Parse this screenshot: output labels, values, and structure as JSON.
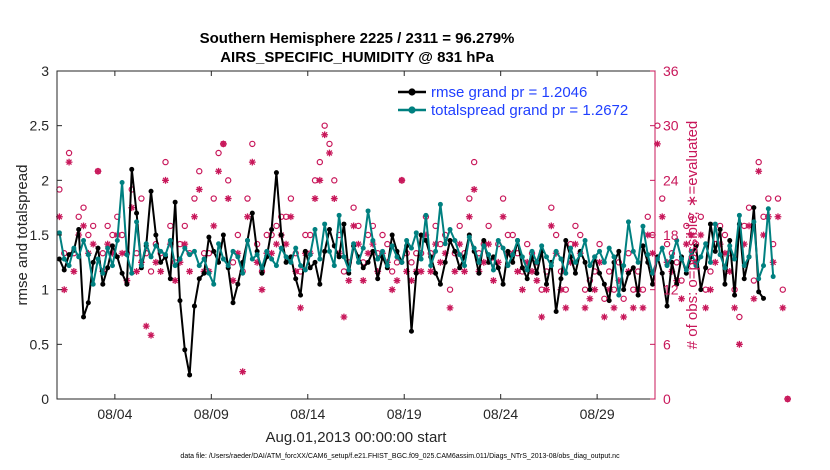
{
  "chart_data": {
    "type": "line",
    "title": "Southern Hemisphere 2225 / 2311 = 96.279%",
    "subtitle": "AIRS_SPECIFIC_HUMIDITY @ 831 hPa",
    "xlabel": "Aug.01,2013 00:00:00 start",
    "ylabel": "rmse and totalspread",
    "ylabel_right": "# of obs: o=possible; ∗=evaluated",
    "footer": "data file: /Users/raeder/DAI/ATM_forcXX/CAM6_setup/f.e21.FHIST_BGC.f09_025.CAM6assim.011/Diags_NTrS_2013-08/obs_diag_output.nc",
    "ylim": [
      0,
      3
    ],
    "ylim_right": [
      0,
      36
    ],
    "xlim_days": [
      1.0,
      32.0
    ],
    "x_tick_days": [
      4,
      9,
      14,
      19,
      24,
      29
    ],
    "x_tick_labels": [
      "08/04",
      "08/09",
      "08/14",
      "08/19",
      "08/24",
      "08/29"
    ],
    "y_ticks": [
      "0",
      "0.5",
      "1",
      "1.5",
      "2",
      "2.5",
      "3"
    ],
    "y_ticks_right": [
      "0",
      "6",
      "12",
      "18",
      "24",
      "30",
      "36"
    ],
    "legend": [
      "rmse grand pr = 1.2046",
      "totalspread grand pr = 1.2672"
    ],
    "colors": {
      "rmse": "#000000",
      "spread": "#008080",
      "obs": "#c8175a",
      "legend_text": "#1f3fff"
    },
    "x_start_day": 1.125,
    "x_step_days": 0.25,
    "series": [
      {
        "name": "rmse",
        "values": [
          1.28,
          1.18,
          1.32,
          1.36,
          1.55,
          0.75,
          0.88,
          1.25,
          1.38,
          1.05,
          1.2,
          1.4,
          1.3,
          1.15,
          1.05,
          2.1,
          1.7,
          1.2,
          1.4,
          1.9,
          1.5,
          1.25,
          1.3,
          1.1,
          1.8,
          0.9,
          0.45,
          0.22,
          0.85,
          1.1,
          1.15,
          1.48,
          1.35,
          1.25,
          1.5,
          1.2,
          0.88,
          1.05,
          1.25,
          1.45,
          1.7,
          1.35,
          1.15,
          1.3,
          1.55,
          2.07,
          1.5,
          1.25,
          1.3,
          1.1,
          0.95,
          1.35,
          1.2,
          1.25,
          1.05,
          1.35,
          1.55,
          1.4,
          1.3,
          1.6,
          1.15,
          1.4,
          1.3,
          1.2,
          1.25,
          1.35,
          1.1,
          1.3,
          1.2,
          1.5,
          1.35,
          1.25,
          1.4,
          0.62,
          1.15,
          1.5,
          1.45,
          1.3,
          1.15,
          1.05,
          1.25,
          1.45,
          1.35,
          1.2,
          1.3,
          1.5,
          1.35,
          1.15,
          1.45,
          1.25,
          1.3,
          1.2,
          1.05,
          1.35,
          1.25,
          1.45,
          1.2,
          1.1,
          1.3,
          1.15,
          1.35,
          1.05,
          1.25,
          0.8,
          1.1,
          1.45,
          1.3,
          1.15,
          1.35,
          1.25,
          1.0,
          1.3,
          1.15,
          1.05,
          0.9,
          1.25,
          1.35,
          1.0,
          1.15,
          1.2,
          0.95,
          1.4,
          1.25,
          1.05,
          1.3,
          1.15,
          0.85,
          1.25,
          1.05,
          1.3,
          1.15,
          1.3,
          1.4,
          1.0,
          1.2,
          1.6,
          1.35,
          1.55,
          1.05,
          1.45,
          0.95,
          1.6,
          1.1,
          1.3,
          1.75,
          0.98,
          0.92
        ]
      },
      {
        "name": "totalspread",
        "values": [
          1.52,
          1.28,
          1.22,
          1.38,
          1.3,
          1.45,
          1.32,
          1.05,
          1.28,
          1.15,
          1.38,
          1.22,
          1.45,
          1.98,
          1.32,
          1.15,
          1.62,
          1.22,
          1.42,
          1.3,
          1.4,
          1.35,
          1.32,
          1.45,
          1.22,
          1.28,
          1.38,
          1.32,
          1.35,
          1.22,
          1.28,
          1.15,
          1.05,
          1.42,
          1.28,
          1.22,
          1.35,
          1.3,
          1.15,
          1.45,
          1.28,
          1.32,
          1.2,
          1.35,
          1.28,
          1.22,
          1.38,
          1.3,
          1.25,
          1.38,
          1.22,
          1.18,
          1.32,
          1.55,
          1.28,
          1.6,
          1.35,
          1.22,
          1.68,
          1.3,
          1.18,
          1.42,
          1.25,
          1.38,
          1.72,
          1.45,
          1.28,
          1.35,
          1.22,
          1.4,
          1.3,
          1.25,
          1.45,
          1.38,
          1.52,
          1.28,
          1.68,
          1.22,
          1.35,
          1.78,
          1.42,
          1.55,
          1.45,
          1.32,
          1.22,
          1.48,
          1.38,
          1.25,
          1.4,
          1.32,
          1.18,
          1.45,
          1.38,
          1.22,
          1.32,
          1.45,
          1.3,
          1.18,
          1.35,
          1.25,
          1.4,
          1.3,
          1.22,
          1.35,
          1.28,
          1.15,
          1.38,
          1.25,
          1.32,
          1.45,
          1.22,
          1.3,
          1.35,
          1.25,
          1.38,
          1.3,
          0.95,
          1.22,
          1.62,
          1.35,
          1.25,
          1.58,
          1.32,
          1.15,
          1.28,
          1.38,
          1.22,
          1.3,
          1.45,
          1.28,
          1.18,
          1.35,
          1.22,
          1.3,
          1.42,
          1.25,
          1.6,
          1.32,
          1.2,
          1.4,
          1.28,
          1.68,
          1.22,
          1.3,
          1.62,
          1.1,
          1.22,
          1.74,
          1.12
        ]
      },
      {
        "name": "obs_possible",
        "values": [
          23,
          16,
          27,
          16,
          20,
          21,
          18,
          19,
          25,
          16,
          19,
          18,
          20,
          18,
          16,
          23,
          16,
          22,
          16,
          14,
          17,
          16,
          26,
          19,
          15,
          17,
          19,
          16,
          22,
          25,
          16,
          16,
          22,
          27,
          28,
          24,
          15,
          18,
          14,
          22,
          28,
          17,
          14,
          18,
          18,
          19,
          20,
          20,
          22,
          16,
          14,
          18,
          18,
          24,
          26,
          30,
          28,
          24,
          18,
          14,
          15,
          21,
          19,
          15,
          18,
          19,
          16,
          18,
          17,
          14,
          15,
          24,
          16,
          15,
          16,
          16,
          20,
          16,
          19,
          17,
          18,
          12,
          16,
          19,
          16,
          22,
          26,
          16,
          17,
          19,
          15,
          17,
          22,
          18,
          18,
          16,
          14,
          17,
          16,
          15,
          12,
          14,
          21,
          18,
          14,
          12,
          17,
          19,
          18,
          12,
          13,
          14,
          17,
          11,
          14,
          12,
          15,
          11,
          16,
          12,
          14,
          12,
          20,
          18,
          30,
          22,
          17,
          16,
          15,
          13,
          19,
          20,
          17,
          20,
          12,
          14,
          17,
          19,
          18,
          16,
          12,
          9,
          19,
          21,
          13,
          26,
          20,
          22,
          17,
          22,
          12,
          0
        ]
      },
      {
        "name": "obs_evaluated",
        "values": [
          20,
          12,
          26,
          14,
          18,
          19,
          16,
          17,
          25,
          14,
          17,
          16,
          18,
          16,
          13,
          21,
          14,
          15,
          8,
          7,
          15,
          14,
          24,
          17,
          13,
          15,
          17,
          14,
          20,
          23,
          14,
          14,
          19,
          25,
          28,
          22,
          13,
          16,
          3,
          20,
          26,
          15,
          12,
          16,
          16,
          17,
          18,
          17,
          20,
          14,
          10,
          16,
          16,
          22,
          24,
          29,
          27,
          22,
          16,
          9,
          13,
          19,
          17,
          13,
          16,
          17,
          14,
          16,
          15,
          12,
          13,
          24,
          14,
          13,
          14,
          14,
          18,
          14,
          17,
          15,
          16,
          10,
          14,
          17,
          14,
          20,
          23,
          14,
          15,
          17,
          13,
          15,
          20,
          16,
          16,
          14,
          12,
          15,
          14,
          13,
          9,
          12,
          19,
          16,
          12,
          10,
          15,
          17,
          16,
          10,
          11,
          12,
          15,
          9,
          12,
          10,
          13,
          9,
          14,
          10,
          12,
          10,
          18,
          16,
          28,
          20,
          15,
          14,
          13,
          11,
          17,
          18,
          15,
          18,
          10,
          12,
          15,
          17,
          16,
          14,
          10,
          6,
          17,
          19,
          11,
          25,
          18,
          20,
          15,
          20,
          10,
          0
        ]
      }
    ]
  }
}
